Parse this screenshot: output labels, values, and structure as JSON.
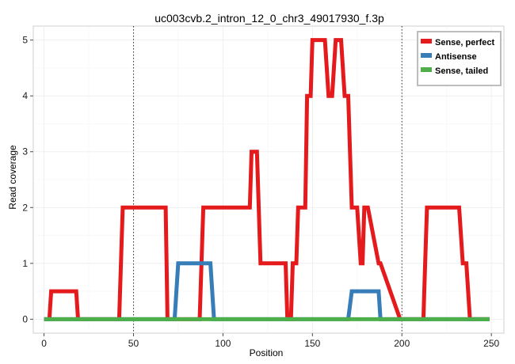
{
  "chart_data": {
    "type": "line",
    "title": "uc003cvb.2_intron_12_0_chr3_49017930_f.3p",
    "xlabel": "Position",
    "ylabel": "Read coverage",
    "xlim": [
      -6,
      257
    ],
    "ylim": [
      -0.25,
      5.25
    ],
    "xticks": [
      0,
      50,
      100,
      150,
      200,
      250
    ],
    "yticks": [
      0,
      1,
      2,
      3,
      4,
      5
    ],
    "grid": true,
    "legend_position": "top-right",
    "vlines": [
      50,
      200
    ],
    "series": [
      {
        "name": "Sense, perfect",
        "color": "#e41a1c",
        "x": [
          0,
          3,
          4,
          18,
          19,
          42,
          44,
          68,
          69,
          87,
          89,
          115,
          116,
          119,
          121,
          135,
          136,
          138,
          139,
          141,
          142,
          146,
          147,
          149,
          150,
          157,
          159,
          161,
          163,
          166,
          168,
          170,
          172,
          175,
          177,
          178,
          179,
          181,
          187,
          188,
          199,
          200,
          210,
          212,
          213,
          214,
          220,
          232,
          234,
          236,
          238,
          249
        ],
        "y": [
          0,
          0,
          0.5,
          0.5,
          0,
          0,
          2,
          2,
          0,
          0,
          2,
          2,
          3,
          3,
          1,
          1,
          0,
          0,
          1,
          1,
          2,
          2,
          4,
          4,
          5,
          5,
          4,
          4,
          5,
          5,
          4,
          4,
          2,
          2,
          1,
          1,
          2,
          2,
          1,
          1,
          0,
          0,
          0,
          0,
          1,
          2,
          2,
          2,
          1,
          1,
          0,
          0
        ]
      },
      {
        "name": "Antisense",
        "color": "#377eb8",
        "x": [
          0,
          73,
          75,
          93,
          95,
          170,
          172,
          187,
          188,
          249
        ],
        "y": [
          0,
          0,
          1,
          1,
          0,
          0,
          0.5,
          0.5,
          0,
          0
        ]
      },
      {
        "name": "Sense, tailed",
        "color": "#4daf4a",
        "x": [
          0,
          249
        ],
        "y": [
          0,
          0
        ]
      }
    ]
  }
}
